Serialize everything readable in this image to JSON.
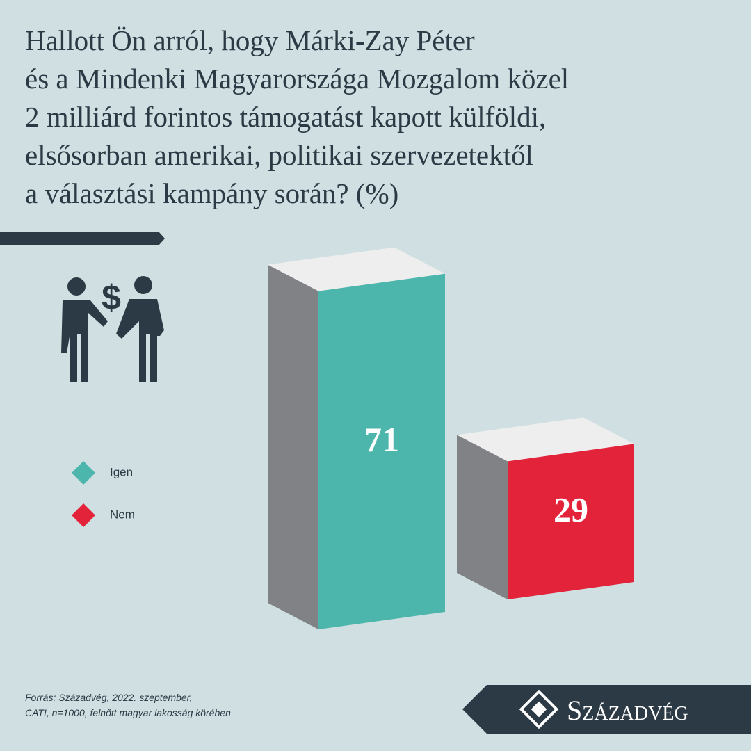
{
  "chart_data": {
    "type": "bar",
    "title": [
      "Hallott Ön arról, hogy Márki-Zay Péter",
      "és a Mindenki Magyarországa Mozgalom közel",
      "2 milliárd forintos támogatást kapott külföldi,",
      "elsősorban amerikai, politikai szervezetektől",
      "a választási kampány során? (%)"
    ],
    "categories": [
      "Igen",
      "Nem"
    ],
    "series": [
      {
        "name": "Igen",
        "color": "#4db6ac",
        "values": [
          71,
          null
        ]
      },
      {
        "name": "Nem",
        "color": "#e3233a",
        "values": [
          null,
          29
        ]
      }
    ],
    "source": [
      "Forrás: Századvég, 2022. szeptember,",
      "CATI, n=1000, felnőtt magyar lakosság körében"
    ],
    "logo": "Századvég"
  }
}
